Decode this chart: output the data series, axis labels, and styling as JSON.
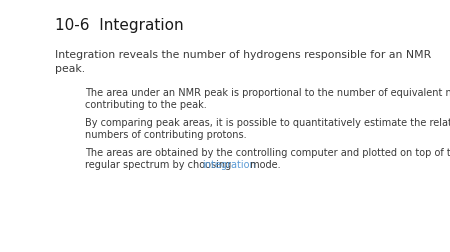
{
  "title": "10-6  Integration",
  "subtitle_line1": "Integration reveals the number of hydrogens responsible for an NMR",
  "subtitle_line2": "peak.",
  "bullet1_line1": "The area under an NMR peak is proportional to the number of equivalent nuclei",
  "bullet1_line2": "contributing to the peak.",
  "bullet2_line1": "By comparing peak areas, it is possible to quantitatively estimate the relative",
  "bullet2_line2": "numbers of contributing protons.",
  "bullet3_line1": "The areas are obtained by the controlling computer and plotted on top of the",
  "bullet3_line2_before": "regular spectrum by choosing ",
  "bullet3_line2_link": "integration",
  "bullet3_line2_after": " mode.",
  "background_color": "#ffffff",
  "title_color": "#1a1a1a",
  "text_color": "#3a3a3a",
  "bullet_color": "#3a3a3a",
  "link_color": "#5b9bd5",
  "title_fontsize": 11,
  "subtitle_fontsize": 7.8,
  "bullet_fontsize": 7.0,
  "fig_width": 4.5,
  "fig_height": 2.53,
  "dpi": 100
}
